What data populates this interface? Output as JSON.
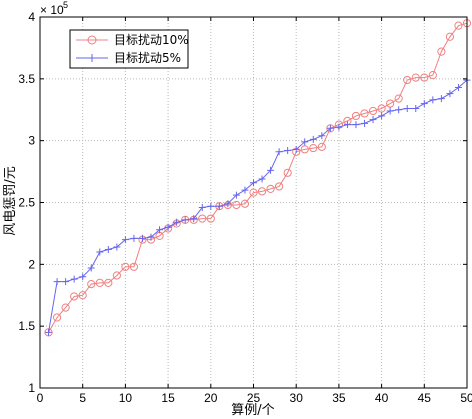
{
  "chart_data": {
    "type": "line",
    "xlabel": "算例/个",
    "ylabel": "风电惩罚/元",
    "y_exponent_label": "× 10",
    "y_exponent_value": "5",
    "xlim": [
      0,
      50
    ],
    "ylim": [
      1,
      4
    ],
    "x_ticks": [
      0,
      5,
      10,
      15,
      20,
      25,
      30,
      35,
      40,
      45,
      50
    ],
    "x_tick_labels": [
      "0",
      "5",
      "10",
      "15",
      "20",
      "25",
      "30",
      "35",
      "40",
      "45",
      "50"
    ],
    "y_ticks": [
      1,
      1.5,
      2,
      2.5,
      3,
      3.5,
      4
    ],
    "y_tick_labels": [
      "1",
      "1.5",
      "2",
      "2.5",
      "3",
      "3.5",
      "4"
    ],
    "grid": true,
    "legend_position": "top-left",
    "x": [
      1,
      2,
      3,
      4,
      5,
      6,
      7,
      8,
      9,
      10,
      11,
      12,
      13,
      14,
      15,
      16,
      17,
      18,
      19,
      20,
      21,
      22,
      23,
      24,
      25,
      26,
      27,
      28,
      29,
      30,
      31,
      32,
      33,
      34,
      35,
      36,
      37,
      38,
      39,
      40,
      41,
      42,
      43,
      44,
      45,
      46,
      47,
      48,
      49,
      50
    ],
    "series": [
      {
        "name": "目标扰动10%",
        "color": "#f08080",
        "marker": "circle",
        "values": [
          1.45,
          1.57,
          1.65,
          1.74,
          1.75,
          1.84,
          1.85,
          1.85,
          1.91,
          1.98,
          1.98,
          2.2,
          2.2,
          2.23,
          2.29,
          2.33,
          2.36,
          2.36,
          2.37,
          2.37,
          2.47,
          2.48,
          2.48,
          2.49,
          2.58,
          2.59,
          2.61,
          2.63,
          2.74,
          2.91,
          2.93,
          2.94,
          2.95,
          3.1,
          3.13,
          3.16,
          3.2,
          3.22,
          3.24,
          3.26,
          3.3,
          3.34,
          3.49,
          3.51,
          3.51,
          3.53,
          3.72,
          3.84,
          3.93,
          3.95
        ]
      },
      {
        "name": "目标扰动5%",
        "color": "#6666ee",
        "marker": "plus",
        "values": [
          1.45,
          1.86,
          1.86,
          1.88,
          1.9,
          1.97,
          2.1,
          2.12,
          2.14,
          2.2,
          2.21,
          2.21,
          2.22,
          2.28,
          2.3,
          2.34,
          2.36,
          2.37,
          2.46,
          2.47,
          2.47,
          2.49,
          2.56,
          2.6,
          2.66,
          2.69,
          2.76,
          2.91,
          2.92,
          2.93,
          2.99,
          3.01,
          3.04,
          3.1,
          3.11,
          3.13,
          3.13,
          3.14,
          3.17,
          3.2,
          3.24,
          3.25,
          3.26,
          3.26,
          3.3,
          3.33,
          3.34,
          3.38,
          3.43,
          3.49
        ]
      }
    ]
  }
}
